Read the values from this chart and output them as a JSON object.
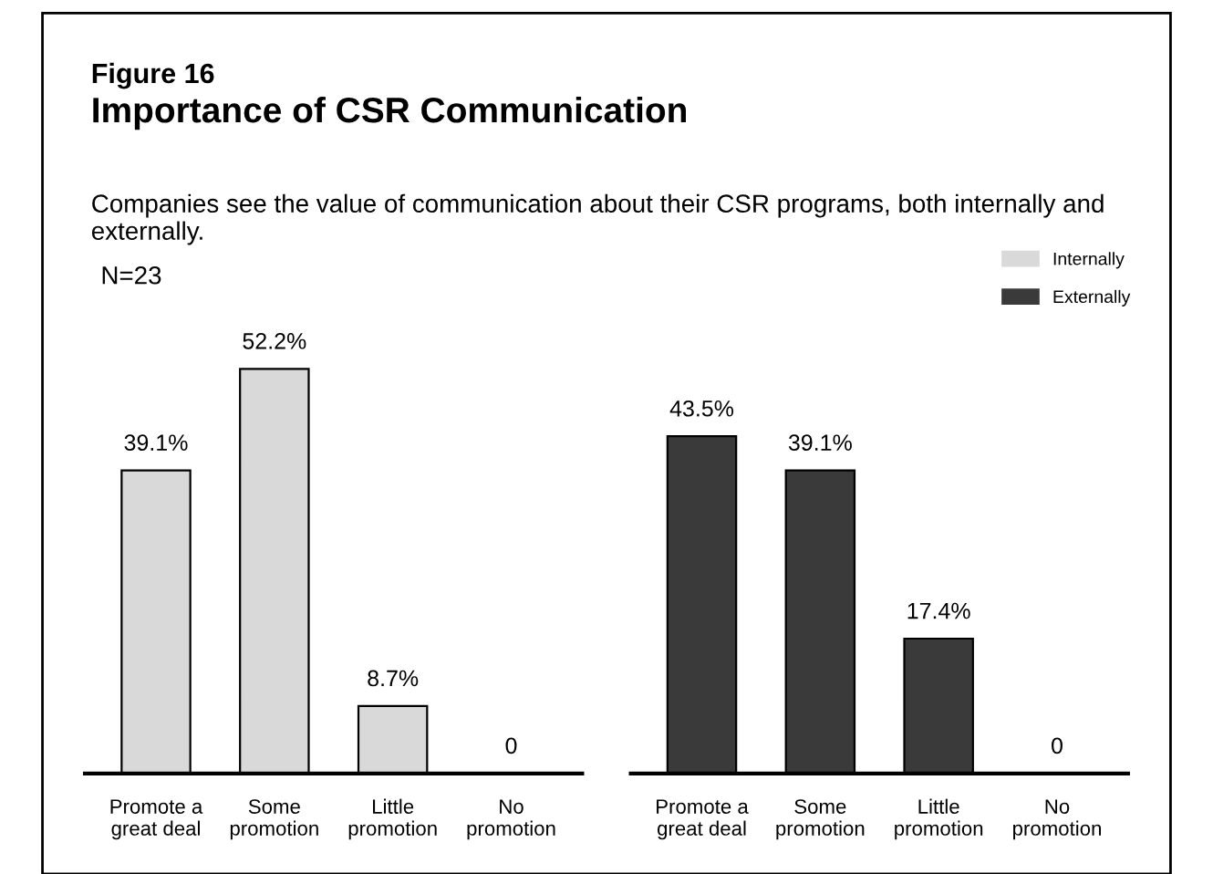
{
  "chart_data": [
    {
      "type": "bar",
      "title": "Figure 16\nImportance of CSR Communication",
      "subtitle": "Companies see the value of communication about their CSR programs, both internally and externally.",
      "annotations": [
        "N=23"
      ],
      "categories": [
        "Promote a\ngreat deal",
        "Some\npromotion",
        "Little\npromotion",
        "No\npromotion"
      ],
      "series": [
        {
          "name": "Internally",
          "color": "#d9d9d9",
          "values": [
            39.1,
            52.2,
            8.7,
            0
          ],
          "value_labels": [
            "39.1%",
            "52.2%",
            "8.7%",
            "0"
          ]
        }
      ],
      "legend": "top right",
      "grid": false
    },
    {
      "type": "bar",
      "categories": [
        "Promote a\ngreat deal",
        "Some\npromotion",
        "Little\npromotion",
        "No\npromotion"
      ],
      "series": [
        {
          "name": "Externally",
          "color": "#3a3a3a",
          "values": [
            43.5,
            39.1,
            17.4,
            0
          ],
          "value_labels": [
            "43.5%",
            "39.1%",
            "17.4%",
            "0"
          ]
        }
      ],
      "legend": "top right",
      "grid": false
    }
  ]
}
